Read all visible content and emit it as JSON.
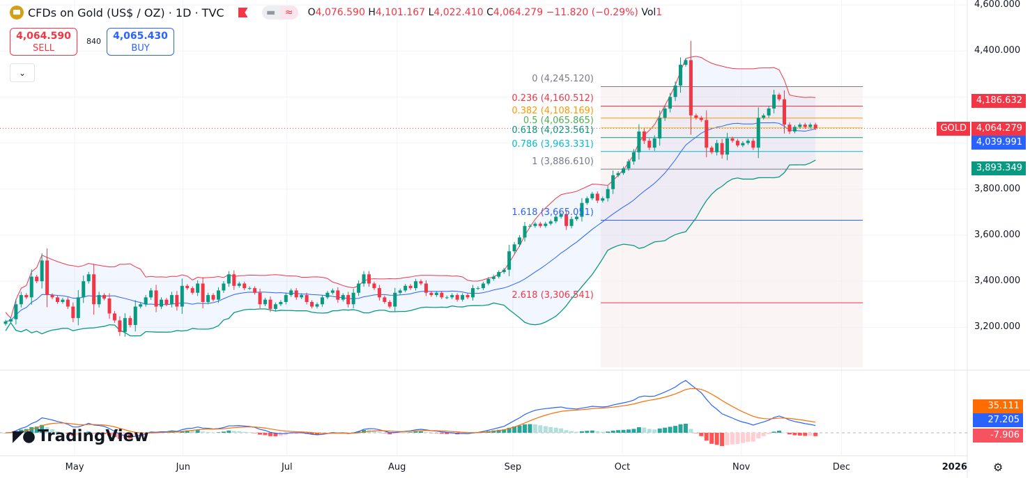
{
  "header": {
    "title": "CFDs on Gold (US$ / OZ) · 1D · TVC",
    "ohlc": {
      "o_label": "O",
      "o": "4,076.590",
      "h_label": "H",
      "h": "4,101.167",
      "l_label": "L",
      "l": "4,022.410",
      "c_label": "C",
      "c": "4,064.279",
      "change": "−11.820 (−0.29%)",
      "vol_label": "Vol",
      "vol": "1"
    }
  },
  "trade": {
    "sell_price": "4,064.590",
    "sell_label": "SELL",
    "spread": "840",
    "buy_price": "4,065.430",
    "buy_label": "BUY"
  },
  "price_axis": {
    "ticks": [
      {
        "v": 4600,
        "label": "4,600.000"
      },
      {
        "v": 4400,
        "label": "4,400.000"
      },
      {
        "v": 3800,
        "label": "3,800.000"
      },
      {
        "v": 3600,
        "label": "3,600.000"
      },
      {
        "v": 3400,
        "label": "3,400.000"
      },
      {
        "v": 3200,
        "label": "3,200.000"
      }
    ],
    "tags": [
      {
        "label": "4,186.632",
        "color": "#f23645"
      },
      {
        "label": "4,064.279",
        "color": "#f23645",
        "symbol": "GOLD"
      },
      {
        "label": "4,039.991",
        "color": "#2962ff"
      },
      {
        "label": "3,893.349",
        "color": "#089981"
      }
    ]
  },
  "macd_axis": {
    "tags": [
      {
        "label": "35.111",
        "color": "#ff6d00"
      },
      {
        "label": "27.205",
        "color": "#2962ff"
      },
      {
        "label": "-7.906",
        "color": "#f7525f"
      }
    ]
  },
  "time_axis": {
    "labels": [
      {
        "label": "May",
        "i": 13.3
      },
      {
        "label": "Jun",
        "i": 34.2
      },
      {
        "label": "Jul",
        "i": 54.2
      },
      {
        "label": "Aug",
        "i": 75.4
      },
      {
        "label": "Sep",
        "i": 97.7
      },
      {
        "label": "Oct",
        "i": 118.8
      },
      {
        "label": "Nov",
        "i": 141.7
      },
      {
        "label": "Dec",
        "i": 161
      },
      {
        "label": "2026",
        "i": 182.8
      }
    ]
  },
  "fib_levels": [
    {
      "label": "0 (4,245.120)",
      "price": 4245.12,
      "color": "#787b86"
    },
    {
      "label": "0.236 (4,160.512)",
      "price": 4160.512,
      "color": "#f23645"
    },
    {
      "label": "0.382 (4,108.169)",
      "price": 4108.169,
      "color": "#ff9800"
    },
    {
      "label": "0.5 (4,065.865)",
      "price": 4065.865,
      "color": "#4caf50",
      "line": "#e6c619"
    },
    {
      "label": "0.618 (4,023.561)",
      "price": 4023.561,
      "color": "#089981"
    },
    {
      "label": "0.786 (3,963.331)",
      "price": 3963.331,
      "color": "#00bcd4"
    },
    {
      "label": "1 (3,886.610)",
      "price": 3886.61,
      "color": "#787b86"
    },
    {
      "label": "1.618 (3,665.051)",
      "price": 3665.051,
      "color": "#2962ff"
    },
    {
      "label": "2.618 (3,306.541)",
      "price": 3306.541,
      "color": "#f23645"
    }
  ],
  "colors": {
    "up": "#089981",
    "down": "#f23645",
    "bb_upper": "#f23645",
    "bb_basis": "#2962ff",
    "bb_lower": "#089981",
    "macd": "#2962ff",
    "signal": "#ff6d00"
  },
  "branding": {
    "logo_text": "TradingView"
  },
  "chart_data": {
    "type": "candlestick",
    "indicators": [
      "Bollinger Bands (20, 2)",
      "MACD (12, 26, 9)"
    ],
    "ylim": [
      3050,
      4600
    ],
    "grid": true,
    "closes": [
      3225,
      3235,
      3300,
      3340,
      3330,
      3420,
      3400,
      3490,
      3340,
      3330,
      3310,
      3320,
      3290,
      3240,
      3330,
      3400,
      3430,
      3300,
      3340,
      3325,
      3260,
      3230,
      3180,
      3240,
      3210,
      3290,
      3300,
      3330,
      3360,
      3290,
      3320,
      3300,
      3340,
      3290,
      3380,
      3370,
      3350,
      3390,
      3310,
      3340,
      3320,
      3360,
      3390,
      3430,
      3380,
      3390,
      3370,
      3370,
      3350,
      3300,
      3320,
      3280,
      3300,
      3310,
      3340,
      3360,
      3330,
      3340,
      3310,
      3290,
      3300,
      3330,
      3350,
      3360,
      3320,
      3340,
      3300,
      3350,
      3390,
      3430,
      3390,
      3370,
      3330,
      3310,
      3290,
      3350,
      3360,
      3380,
      3370,
      3400,
      3390,
      3350,
      3340,
      3350,
      3330,
      3330,
      3340,
      3320,
      3340,
      3330,
      3370,
      3370,
      3390,
      3410,
      3420,
      3440,
      3450,
      3530,
      3560,
      3590,
      3640,
      3640,
      3650,
      3640,
      3650,
      3660,
      3680,
      3690,
      3640,
      3670,
      3680,
      3740,
      3760,
      3780,
      3750,
      3760,
      3800,
      3860,
      3870,
      3890,
      3920,
      3960,
      4050,
      4010,
      3980,
      4020,
      4110,
      4150,
      4200,
      4250,
      4340,
      4360,
      4120,
      4110,
      4100,
      3980,
      3960,
      4000,
      3950,
      4020,
      4010,
      3990,
      4000,
      4010,
      3980,
      4110,
      4120,
      4150,
      4210,
      4190,
      4080,
      4050,
      4070,
      4080,
      4070,
      4080,
      4064.279
    ]
  }
}
